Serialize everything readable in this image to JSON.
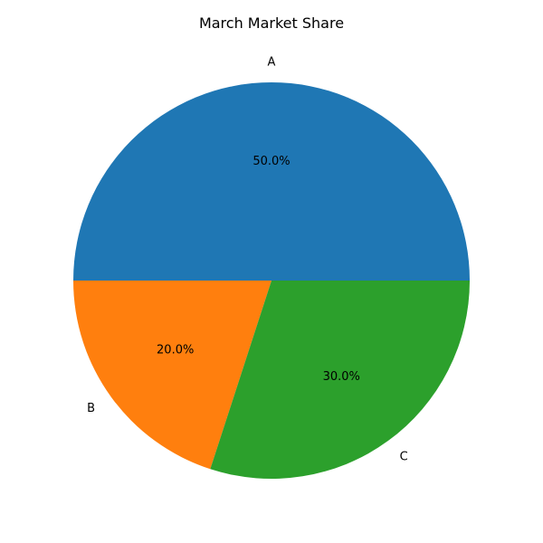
{
  "chart_data": {
    "type": "pie",
    "title": "March Market Share",
    "categories": [
      "A",
      "B",
      "C"
    ],
    "values": [
      50,
      20,
      30
    ],
    "percent_labels": [
      "50.0%",
      "20.0%",
      "30.0%"
    ],
    "colors": [
      "#1f77b4",
      "#ff7f0e",
      "#2ca02c"
    ],
    "start_angle": "0 degrees (3 o'clock), counterclockwise",
    "legend": "none"
  }
}
